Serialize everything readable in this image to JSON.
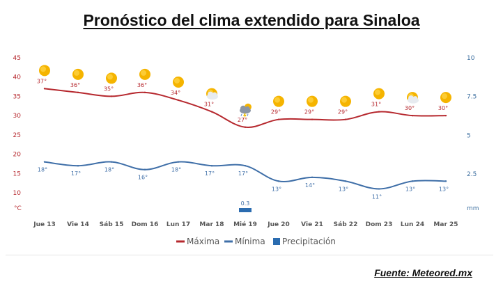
{
  "page": {
    "title": "Pronóstico del clima extendido para Sinaloa",
    "source": "Fuente: Meteored.mx"
  },
  "colors": {
    "max": "#b6282e",
    "min": "#3f6fa8",
    "precip": "#2b6cb0",
    "left_axis": "#b6282e",
    "right_axis": "#3d6fa0",
    "sun": "#f5b400"
  },
  "chart_data": {
    "type": "line",
    "categories": [
      "Jue 13",
      "Vie 14",
      "Sáb 15",
      "Dom 16",
      "Lun 17",
      "Mar 18",
      "Mié 19",
      "Jue 20",
      "Vie 21",
      "Sáb 22",
      "Dom 23",
      "Lun 24",
      "Mar 25"
    ],
    "series": [
      {
        "name": "Máxima",
        "values": [
          37,
          36,
          35,
          36,
          34,
          31,
          27,
          29,
          29,
          29,
          31,
          30,
          30
        ],
        "labels": [
          "37°",
          "36°",
          "35°",
          "36°",
          "34°",
          "31°",
          "27°",
          "29°",
          "29°",
          "29°",
          "31°",
          "30°",
          "30°"
        ]
      },
      {
        "name": "Mínima",
        "values": [
          18,
          17,
          18,
          16,
          18,
          17,
          17,
          13,
          14,
          13,
          11,
          13,
          13
        ],
        "labels": [
          "18°",
          "17°",
          "18°",
          "16°",
          "18°",
          "17°",
          "17°",
          "13°",
          "14°",
          "13°",
          "11°",
          "13°",
          "13°"
        ]
      },
      {
        "name": "Precipitación",
        "values": [
          0,
          0,
          0,
          0,
          0,
          0,
          0.3,
          0,
          0,
          0,
          0,
          0,
          0
        ],
        "labels": [
          "",
          "",
          "",
          "",
          "",
          "",
          "0.3",
          "",
          "",
          "",
          "",
          "",
          ""
        ],
        "axis": "right"
      }
    ],
    "weather_icons": [
      "sun-icon",
      "sun-icon",
      "sun-icon",
      "sun-icon",
      "sun-icon",
      "partly-cloudy-icon",
      "storm-cloud-icon",
      "sun-icon",
      "sun-icon",
      "sun-icon",
      "sun-icon",
      "partly-cloudy-icon",
      "sun-icon"
    ],
    "y_left": {
      "ticks": [
        "45",
        "40",
        "35",
        "30",
        "25",
        "20",
        "15",
        "10"
      ],
      "unit": "°C",
      "ylim": [
        5,
        45
      ]
    },
    "y_right": {
      "ticks": [
        "10",
        "7.5",
        "5",
        "2.5"
      ],
      "unit": "mm",
      "ylim": [
        0,
        10
      ]
    },
    "legend": [
      "Máxima",
      "Mínima",
      "Precipitación"
    ],
    "legend_position": "bottom-center",
    "grid": false
  }
}
